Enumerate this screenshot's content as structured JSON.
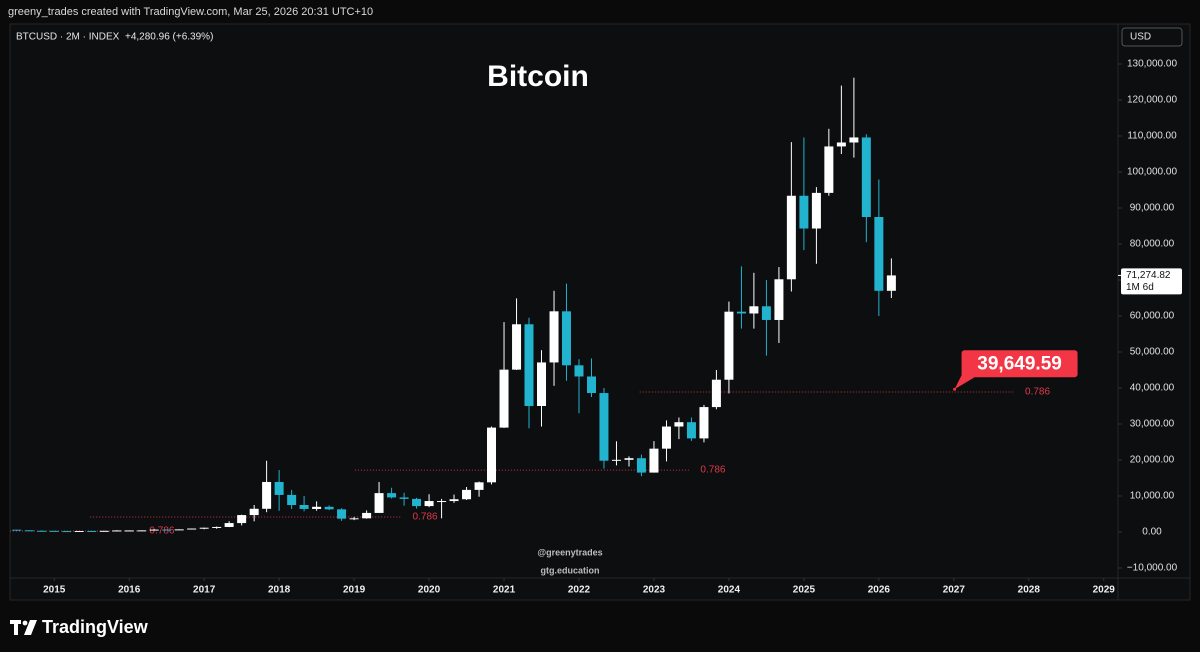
{
  "header": "greeny_trades created with TradingView.com, Mar 25, 2026 20:31 UTC+10",
  "footer_brand": "TradingView",
  "chart_data": {
    "type": "candlestick",
    "title": "Bitcoin",
    "symbol": "BTCUSD · 2M · INDEX",
    "change": "+4,280.96 (+6.39%)",
    "currency": "USD",
    "up_color": "#ffffff",
    "down_color": "#22b3cf",
    "x": [
      2014.5,
      2014.667,
      2014.833,
      2015,
      2015.167,
      2015.333,
      2015.5,
      2015.667,
      2015.833,
      2016,
      2016.167,
      2016.333,
      2016.5,
      2016.667,
      2016.833,
      2017,
      2017.167,
      2017.333,
      2017.5,
      2017.667,
      2017.833,
      2018,
      2018.167,
      2018.333,
      2018.5,
      2018.667,
      2018.833,
      2019,
      2019.167,
      2019.333,
      2019.5,
      2019.667,
      2019.833,
      2020,
      2020.167,
      2020.333,
      2020.5,
      2020.667,
      2020.833,
      2021,
      2021.167,
      2021.333,
      2021.5,
      2021.667,
      2021.833,
      2022,
      2022.167,
      2022.333,
      2022.5,
      2022.667,
      2022.833,
      2023,
      2023.167,
      2023.333,
      2023.5,
      2023.667,
      2023.833,
      2024,
      2024.167,
      2024.333,
      2024.5,
      2024.667,
      2024.833,
      2025,
      2025.167,
      2025.333,
      2025.5,
      2025.667,
      2025.833,
      2026,
      2026.167
    ],
    "open": [
      640,
      480,
      340,
      320,
      255,
      235,
      285,
      230,
      325,
      430,
      435,
      450,
      670,
      575,
      730,
      965,
      1190,
      1400,
      2480,
      4700,
      6450,
      13900,
      10300,
      7500,
      6400,
      7000,
      6300,
      3700,
      3800,
      5300,
      10800,
      9600,
      9200,
      7200,
      8600,
      8600,
      9100,
      11700,
      13800,
      29000,
      45100,
      57700,
      35000,
      47100,
      61300,
      46300,
      43200,
      38600,
      19800,
      20050,
      20500,
      16500,
      23150,
      29300,
      30500,
      26000,
      34700,
      42300,
      61200,
      60700,
      62700,
      58900,
      70200,
      93400,
      84300,
      94200,
      107100,
      108200,
      109600,
      87500,
      67000
    ],
    "high": [
      660,
      490,
      455,
      320,
      300,
      265,
      315,
      330,
      500,
      450,
      465,
      780,
      680,
      740,
      980,
      1200,
      1530,
      3000,
      4800,
      7500,
      19800,
      17200,
      11700,
      10000,
      8500,
      7400,
      6600,
      4200,
      6000,
      13900,
      12300,
      10900,
      9500,
      10500,
      9200,
      10400,
      12500,
      14000,
      29300,
      58300,
      64900,
      59500,
      50500,
      67000,
      69000,
      48000,
      48200,
      40000,
      25200,
      21000,
      21500,
      25250,
      31000,
      31800,
      31800,
      35300,
      45000,
      64000,
      73800,
      72000,
      70000,
      73600,
      108300,
      109600,
      95800,
      112000,
      124000,
      126200,
      110500,
      97900,
      76000
    ],
    "low": [
      440,
      275,
      310,
      165,
      210,
      215,
      195,
      225,
      315,
      350,
      400,
      440,
      480,
      560,
      695,
      750,
      890,
      1350,
      1830,
      2970,
      5500,
      5900,
      6400,
      5750,
      5900,
      6100,
      3100,
      3300,
      3700,
      5300,
      9300,
      7300,
      6500,
      6900,
      3800,
      8100,
      8900,
      9800,
      13200,
      28900,
      45000,
      28800,
      29300,
      40600,
      42000,
      33000,
      37500,
      17600,
      18500,
      18200,
      15500,
      16500,
      19600,
      25800,
      25300,
      24900,
      34100,
      38500,
      56500,
      56500,
      49000,
      52500,
      66800,
      78300,
      74500,
      93400,
      105000,
      104000,
      80500,
      60000,
      65000
    ],
    "close": [
      480,
      340,
      320,
      255,
      235,
      285,
      230,
      325,
      430,
      435,
      450,
      670,
      575,
      730,
      965,
      1190,
      1400,
      2480,
      4700,
      6450,
      13900,
      10300,
      7500,
      6400,
      7000,
      6300,
      3700,
      3800,
      5300,
      10800,
      9600,
      9200,
      7200,
      8600,
      8600,
      9100,
      11700,
      13800,
      29000,
      45100,
      57700,
      35000,
      47100,
      61300,
      46300,
      43200,
      38600,
      19800,
      20050,
      20500,
      16500,
      23150,
      29300,
      30500,
      26000,
      34700,
      42300,
      61200,
      60700,
      62700,
      58900,
      70200,
      93400,
      84300,
      94200,
      107100,
      108200,
      109600,
      87500,
      67000,
      71274.82
    ],
    "xlim": [
      2014.41,
      2029.19
    ],
    "xticks": [
      2015,
      2016,
      2017,
      2018,
      2019,
      2020,
      2021,
      2022,
      2023,
      2024,
      2025,
      2026,
      2027,
      2028,
      2029
    ],
    "ylim": [
      -12778,
      141111
    ],
    "yticks": [
      {
        "value": 130000,
        "label": "130,000.00"
      },
      {
        "value": 120000,
        "label": "120,000.00"
      },
      {
        "value": 110000,
        "label": "110,000.00"
      },
      {
        "value": 100000,
        "label": "100,000.00"
      },
      {
        "value": 90000,
        "label": "90,000.00"
      },
      {
        "value": 80000,
        "label": "80,000.00"
      },
      {
        "value": 70000,
        "label": "70,000.00"
      },
      {
        "value": 60000,
        "label": "60,000.00"
      },
      {
        "value": 50000,
        "label": "50,000.00"
      },
      {
        "value": 40000,
        "label": "40,000.00"
      },
      {
        "value": 30000,
        "label": "30,000.00"
      },
      {
        "value": 20000,
        "label": "20,000.00"
      },
      {
        "value": 10000,
        "label": "10,000.00"
      },
      {
        "value": 0,
        "label": "0.00"
      },
      {
        "value": -10000,
        "label": "−10,000.00"
      }
    ],
    "last_price": {
      "value": 71274.82,
      "label": "71,274.82",
      "countdown": "1M 6d"
    },
    "target": {
      "value": 39649.59,
      "label": "39,649.59",
      "x": 2027.01,
      "color": "#f23645"
    },
    "fib_color": "#e0394a",
    "fib_levels": [
      {
        "level": 0.786,
        "value": 278,
        "x_start": 2014.41,
        "x_end": 2016.13
      },
      {
        "level": 0.786,
        "value": 4170,
        "x_start": 2015.48,
        "x_end": 2019.64
      },
      {
        "level": 0.786,
        "value": 17200,
        "x_start": 2019.01,
        "x_end": 2023.48
      },
      {
        "level": 0.786,
        "value": 38900,
        "x_start": 2022.81,
        "x_end": 2027.81
      }
    ],
    "watermarks": [
      "@greenytrades",
      "gtg.education"
    ]
  }
}
